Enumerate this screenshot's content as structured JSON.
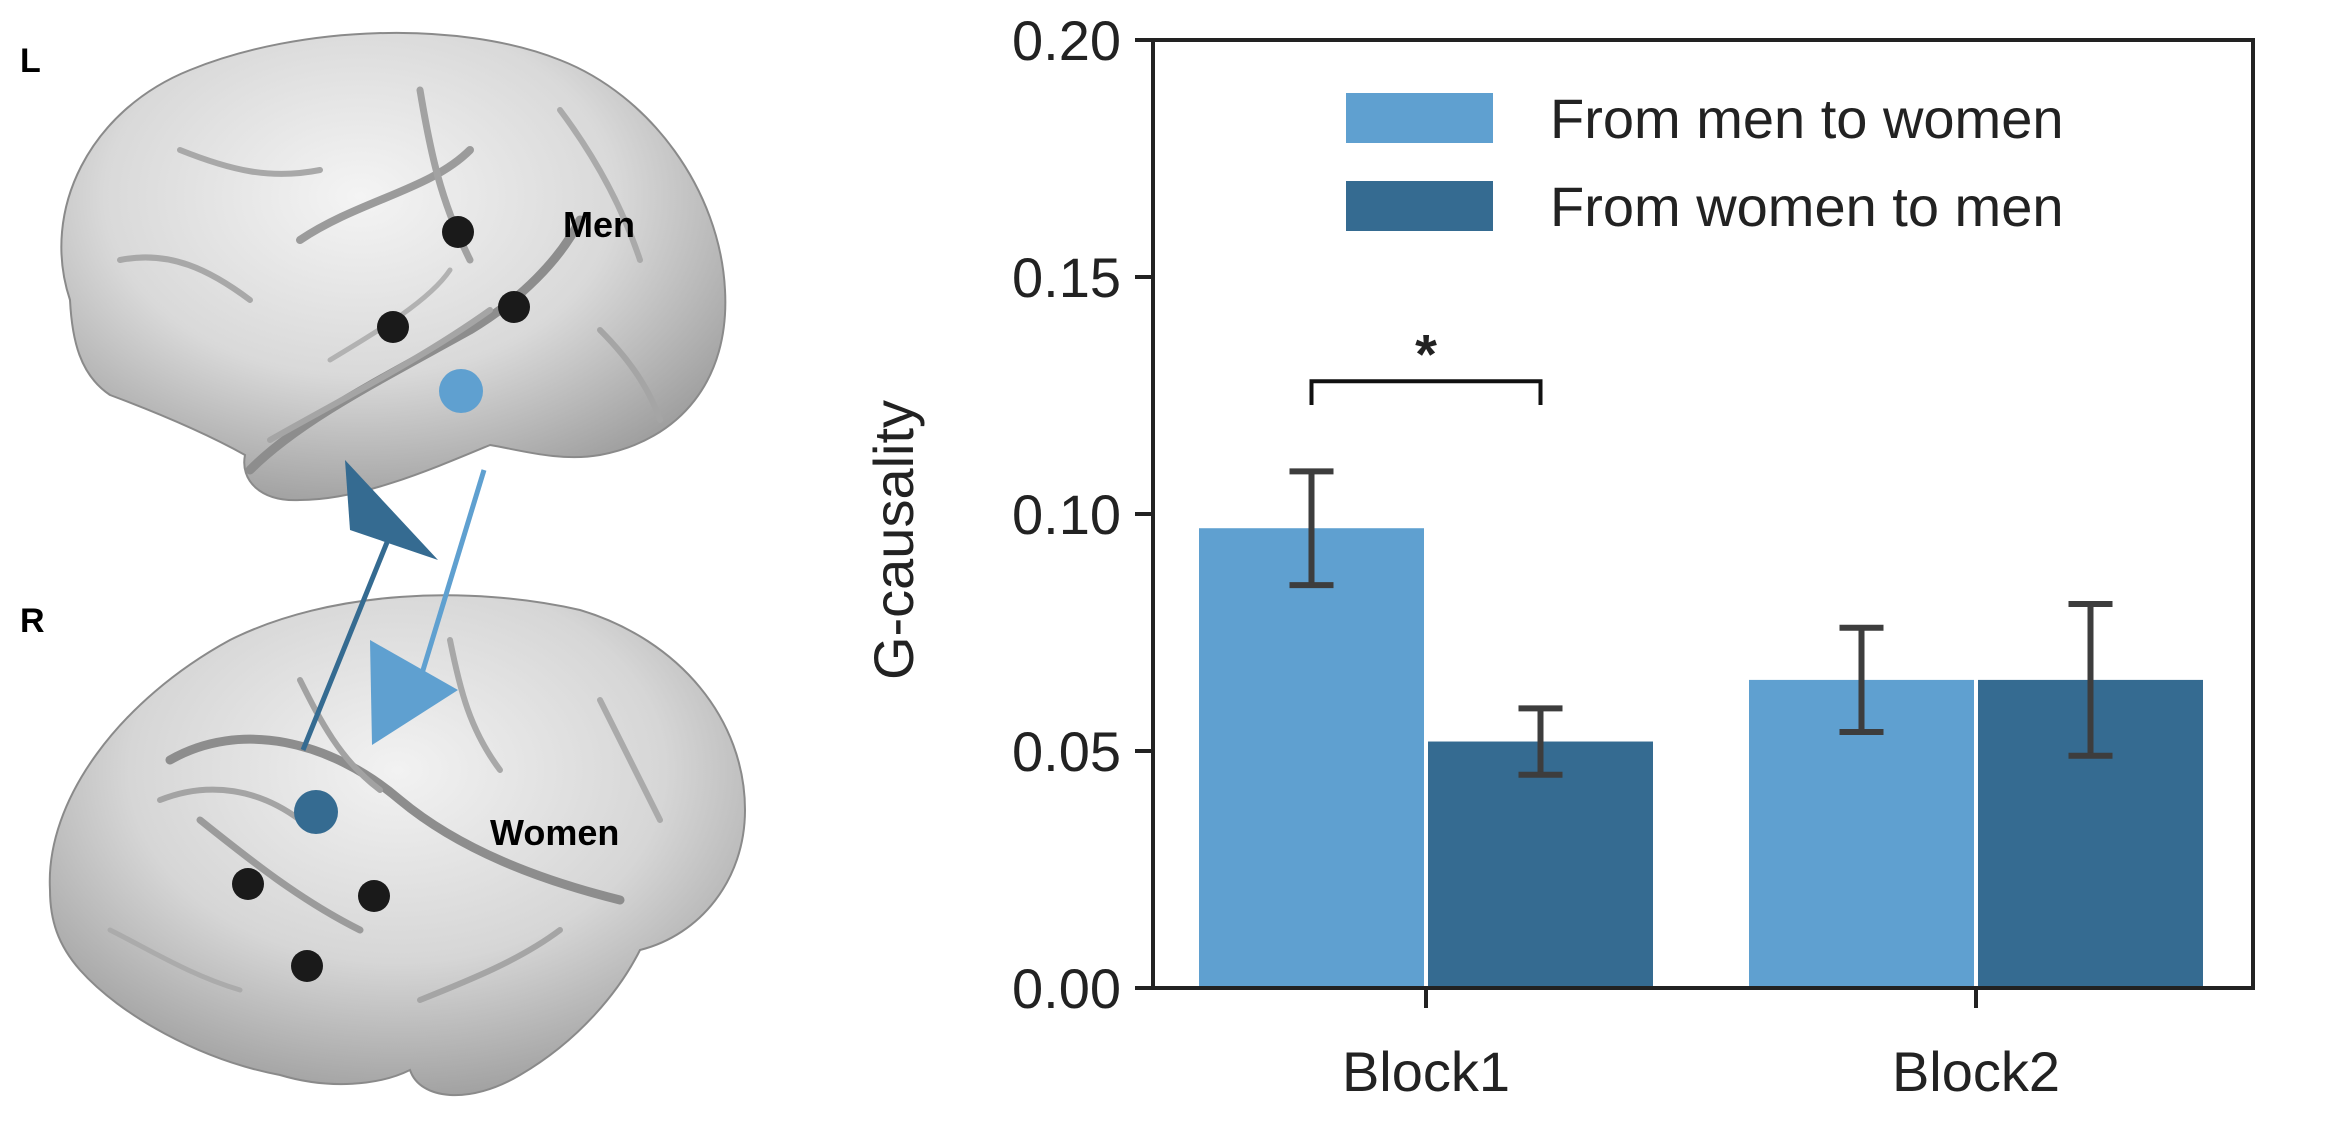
{
  "brain_panel": {
    "top_hemisphere_label": "L",
    "bottom_hemisphere_label": "R",
    "top_region_label": "Men",
    "bottom_region_label": "Women",
    "arrow_colors": {
      "men_to_women": "#5fa0d0",
      "women_to_men": "#356b91"
    },
    "node_colors": {
      "electrode": "#1a1a1a",
      "men_node": "#5fa0d0",
      "women_node": "#356b91"
    }
  },
  "chart_data": {
    "type": "bar",
    "categories": [
      "Block1",
      "Block2"
    ],
    "series": [
      {
        "name": "From men to women",
        "color": "#5fa0d0",
        "values": [
          0.097,
          0.065
        ],
        "errors": [
          0.012,
          0.011
        ]
      },
      {
        "name": "From women to men",
        "color": "#356b91",
        "values": [
          0.052,
          0.065
        ],
        "errors": [
          0.007,
          0.016
        ]
      }
    ],
    "ylabel": "G-causality",
    "xlabel": "",
    "ylim": [
      0,
      0.2
    ],
    "yticks": [
      "0.00",
      "0.05",
      "0.10",
      "0.15",
      "0.20"
    ],
    "yticks_values": [
      0,
      0.05,
      0.1,
      0.15,
      0.2
    ],
    "annotations": [
      {
        "text": "*",
        "category": "Block1",
        "between_series": [
          0,
          1
        ]
      }
    ],
    "legend_position": "top-right",
    "grid": false
  }
}
